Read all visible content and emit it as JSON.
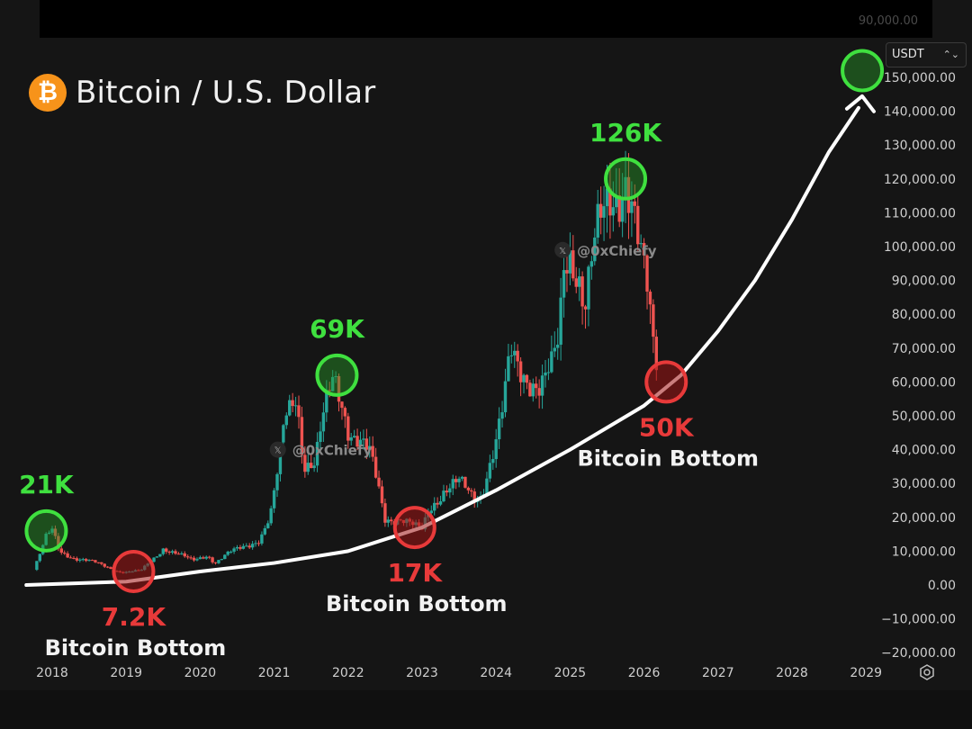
{
  "header": {
    "title": "Bitcoin / U.S. Dollar",
    "logo_icon": "bitcoin-icon",
    "currency": "USDT",
    "top_strip_price": "90,000.00"
  },
  "watermarks": [
    "@0xChiefy",
    "@0xChiefy"
  ],
  "settings_icon": "gear-icon",
  "colors": {
    "up": "#26a69a",
    "down": "#ef5350",
    "peak": "#3fe03f",
    "bottom": "#e83a3a",
    "trendline": "#ffffff",
    "background": "#151515"
  },
  "chart_data": {
    "type": "candlestick",
    "title": "Bitcoin / U.S. Dollar",
    "currency": "USDT",
    "y_axis": {
      "ylim": [
        -20000,
        150000
      ],
      "ticks": [
        "150,000.00",
        "140,000.00",
        "130,000.00",
        "120,000.00",
        "110,000.00",
        "100,000.00",
        "90,000.00",
        "80,000.00",
        "70,000.00",
        "60,000.00",
        "50,000.00",
        "40,000.00",
        "30,000.00",
        "20,000.00",
        "10,000.00",
        "0.00",
        "−10,000.00",
        "−20,000.00"
      ]
    },
    "x_axis": {
      "ticks": [
        "2018",
        "2019",
        "2020",
        "2021",
        "2022",
        "2023",
        "2024",
        "2025",
        "2026",
        "2027",
        "2028",
        "2029"
      ]
    },
    "price_path": [
      [
        2017.75,
        4500
      ],
      [
        2017.92,
        14000
      ],
      [
        2018.0,
        16000
      ],
      [
        2018.1,
        10000
      ],
      [
        2018.3,
        8000
      ],
      [
        2018.6,
        6500
      ],
      [
        2018.9,
        4000
      ],
      [
        2019.0,
        3800
      ],
      [
        2019.2,
        4200
      ],
      [
        2019.4,
        8500
      ],
      [
        2019.5,
        11000
      ],
      [
        2019.7,
        9000
      ],
      [
        2019.9,
        7200
      ],
      [
        2020.1,
        9000
      ],
      [
        2020.2,
        6500
      ],
      [
        2020.4,
        9500
      ],
      [
        2020.6,
        11500
      ],
      [
        2020.8,
        13500
      ],
      [
        2020.95,
        20000
      ],
      [
        2021.05,
        33000
      ],
      [
        2021.15,
        50000
      ],
      [
        2021.3,
        58000
      ],
      [
        2021.4,
        36000
      ],
      [
        2021.55,
        35000
      ],
      [
        2021.65,
        47000
      ],
      [
        2021.8,
        62000
      ],
      [
        2021.9,
        57000
      ],
      [
        2022.0,
        47000
      ],
      [
        2022.1,
        43000
      ],
      [
        2022.3,
        38000
      ],
      [
        2022.4,
        30000
      ],
      [
        2022.5,
        20000
      ],
      [
        2022.7,
        19500
      ],
      [
        2022.9,
        17000
      ],
      [
        2023.0,
        16500
      ],
      [
        2023.1,
        23000
      ],
      [
        2023.3,
        28000
      ],
      [
        2023.5,
        30000
      ],
      [
        2023.7,
        26000
      ],
      [
        2023.8,
        27000
      ],
      [
        2023.9,
        35000
      ],
      [
        2024.0,
        42000
      ],
      [
        2024.1,
        52000
      ],
      [
        2024.2,
        68000
      ],
      [
        2024.3,
        65000
      ],
      [
        2024.45,
        62000
      ],
      [
        2024.6,
        58000
      ],
      [
        2024.75,
        63000
      ],
      [
        2024.85,
        72000
      ],
      [
        2024.92,
        96000
      ],
      [
        2025.0,
        100000
      ],
      [
        2025.1,
        95000
      ],
      [
        2025.2,
        82000
      ],
      [
        2025.3,
        95000
      ],
      [
        2025.4,
        105000
      ],
      [
        2025.55,
        115000
      ],
      [
        2025.65,
        118000
      ],
      [
        2025.75,
        122000
      ],
      [
        2025.85,
        110000
      ],
      [
        2025.95,
        95000
      ],
      [
        2026.05,
        85000
      ],
      [
        2026.12,
        72000
      ],
      [
        2026.18,
        66000
      ]
    ],
    "annotations": [
      {
        "kind": "peak",
        "label": "21K",
        "x": 2017.92,
        "y": 16000
      },
      {
        "kind": "bottom",
        "label": "7.2K",
        "sublabel": "Bitcoin Bottom",
        "x": 2019.1,
        "y": 4000
      },
      {
        "kind": "peak",
        "label": "69K",
        "x": 2021.85,
        "y": 62000
      },
      {
        "kind": "bottom",
        "label": "17K",
        "sublabel": "Bitcoin Bottom",
        "x": 2022.9,
        "y": 17000
      },
      {
        "kind": "peak",
        "label": "126K",
        "x": 2025.75,
        "y": 120000
      },
      {
        "kind": "bottom",
        "label": "50K",
        "sublabel": "Bitcoin Bottom",
        "x": 2026.3,
        "y": 60000
      },
      {
        "kind": "target",
        "label": "",
        "x": 2028.95,
        "y": 152000
      }
    ],
    "trendline": [
      [
        2017.65,
        0
      ],
      [
        2019.0,
        1000
      ],
      [
        2020.0,
        4000
      ],
      [
        2021.0,
        6500
      ],
      [
        2022.0,
        10000
      ],
      [
        2023.0,
        17000
      ],
      [
        2024.0,
        28000
      ],
      [
        2025.0,
        40000
      ],
      [
        2026.0,
        53000
      ],
      [
        2026.5,
        62000
      ],
      [
        2027.0,
        75000
      ],
      [
        2027.5,
        90000
      ],
      [
        2028.0,
        108000
      ],
      [
        2028.5,
        128000
      ],
      [
        2028.9,
        141000
      ]
    ]
  }
}
